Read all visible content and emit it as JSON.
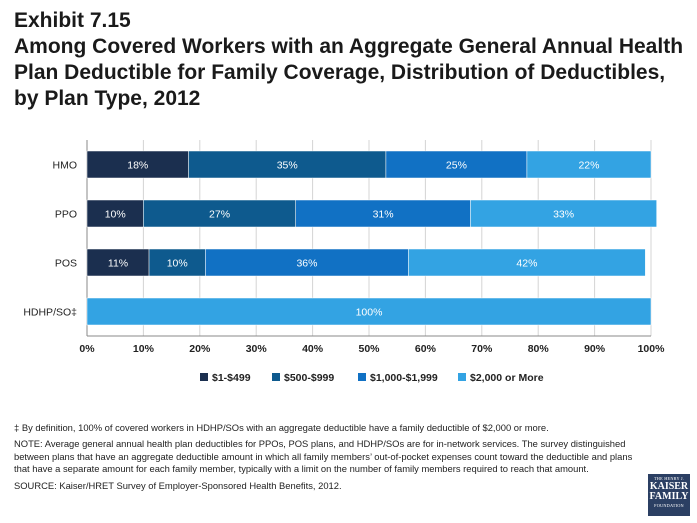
{
  "title": {
    "line1": "Exhibit 7.15",
    "line2": "Among Covered Workers with an Aggregate General Annual Health",
    "line3": "Plan Deductible for Family Coverage, Distribution of Deductibles,",
    "line4": "by Plan Type,  2012"
  },
  "chart_data": {
    "type": "bar",
    "orientation": "horizontal",
    "stacked": true,
    "categories": [
      "HMO",
      "PPO",
      "POS",
      "HDHP/SO‡"
    ],
    "series": [
      {
        "name": "$1-$499",
        "color": "#1b2f4f",
        "values": [
          18,
          10,
          11,
          0
        ],
        "labels": [
          "18%",
          "10%",
          "11%",
          ""
        ]
      },
      {
        "name": "$500-$999",
        "color": "#0e5a8e",
        "values": [
          35,
          27,
          10,
          0
        ],
        "labels": [
          "35%",
          "27%",
          "10%",
          ""
        ]
      },
      {
        "name": "$1,000-$1,999",
        "color": "#1171c4",
        "values": [
          25,
          31,
          36,
          0
        ],
        "labels": [
          "25%",
          "31%",
          "36%",
          ""
        ]
      },
      {
        "name": "$2,000 or More",
        "color": "#33a3e3",
        "values": [
          22,
          33,
          42,
          100
        ],
        "labels": [
          "22%",
          "33%",
          "42%",
          "100%"
        ]
      }
    ],
    "xlim": [
      0,
      100
    ],
    "xticks": [
      "0%",
      "10%",
      "20%",
      "30%",
      "40%",
      "50%",
      "60%",
      "70%",
      "80%",
      "90%",
      "100%"
    ],
    "grid": true,
    "legend_position": "bottom"
  },
  "notes": {
    "footnote": "‡ By definition, 100% of covered workers in HDHP/SOs with an aggregate deductible have a family deductible of $2,000 or more.",
    "note": "NOTE: Average general annual health plan deductibles for PPOs, POS plans, and HDHP/SOs are for in-network services. The survey distinguished between plans that have an aggregate deductible amount in which all family members’ out-of-pocket expenses count toward the deductible and plans that have a separate amount for each family member, typically with a limit on the number of family members required to reach that amount.",
    "source": "SOURCE:  Kaiser/HRET Survey of Employer-Sponsored Health Benefits, 2012."
  },
  "logo": {
    "line1": "THE HENRY J.",
    "line2": "KAISER",
    "line3": "FAMILY",
    "line4": "FOUNDATION"
  }
}
